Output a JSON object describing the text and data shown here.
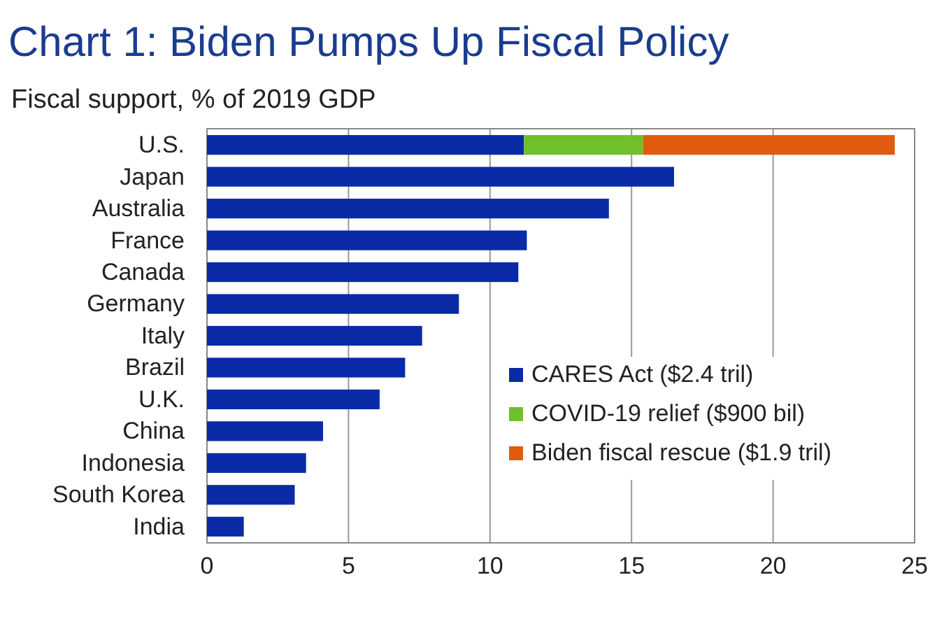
{
  "chart_data": {
    "type": "bar",
    "orientation": "horizontal",
    "stacked": true,
    "title": "Chart 1: Biden Pumps Up Fiscal Policy",
    "subtitle": "Fiscal support, % of 2019 GDP",
    "categories": [
      "U.S.",
      "Japan",
      "Australia",
      "France",
      "Canada",
      "Germany",
      "Italy",
      "Brazil",
      "U.K.",
      "China",
      "Indonesia",
      "South Korea",
      "India"
    ],
    "series": [
      {
        "name": "CARES Act ($2.4 tril)",
        "color": "#0a2aa6",
        "values": [
          11.2,
          16.5,
          14.2,
          11.3,
          11.0,
          8.9,
          7.6,
          7.0,
          6.1,
          4.1,
          3.5,
          3.1,
          1.3
        ]
      },
      {
        "name": "COVID-19 relief ($900 bil)",
        "color": "#6fc02a",
        "values": [
          4.2,
          null,
          null,
          null,
          null,
          null,
          null,
          null,
          null,
          null,
          null,
          null,
          null
        ]
      },
      {
        "name": "Biden fiscal rescue ($1.9 tril)",
        "color": "#e05a10",
        "values": [
          8.9,
          null,
          null,
          null,
          null,
          null,
          null,
          null,
          null,
          null,
          null,
          null,
          null
        ]
      }
    ],
    "xlim": [
      0,
      25
    ],
    "xticks": [
      0,
      5,
      10,
      15,
      20,
      25
    ],
    "grid": "x",
    "legend": "bottom right"
  }
}
